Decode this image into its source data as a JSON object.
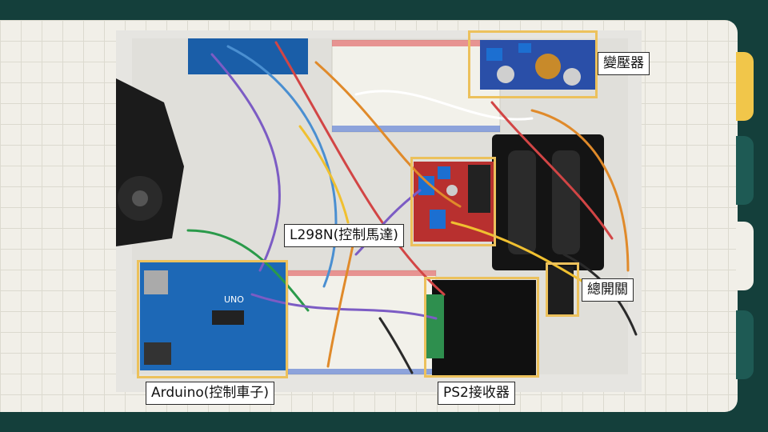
{
  "labels": {
    "transformer": "變壓器",
    "l298n": "L298N(控制馬達)",
    "main_switch": "總開關",
    "arduino": "Arduino(控制車子)",
    "ps2_receiver": "PS2接收器"
  },
  "board_silkscreen": {
    "uno_text": "UNO"
  },
  "colors": {
    "background": "#143f3b",
    "panel": "#f1efe8",
    "highlight": "#ecc15c",
    "tab_yellow": "#f1c64a",
    "tab_teal": "#1e5a54"
  }
}
